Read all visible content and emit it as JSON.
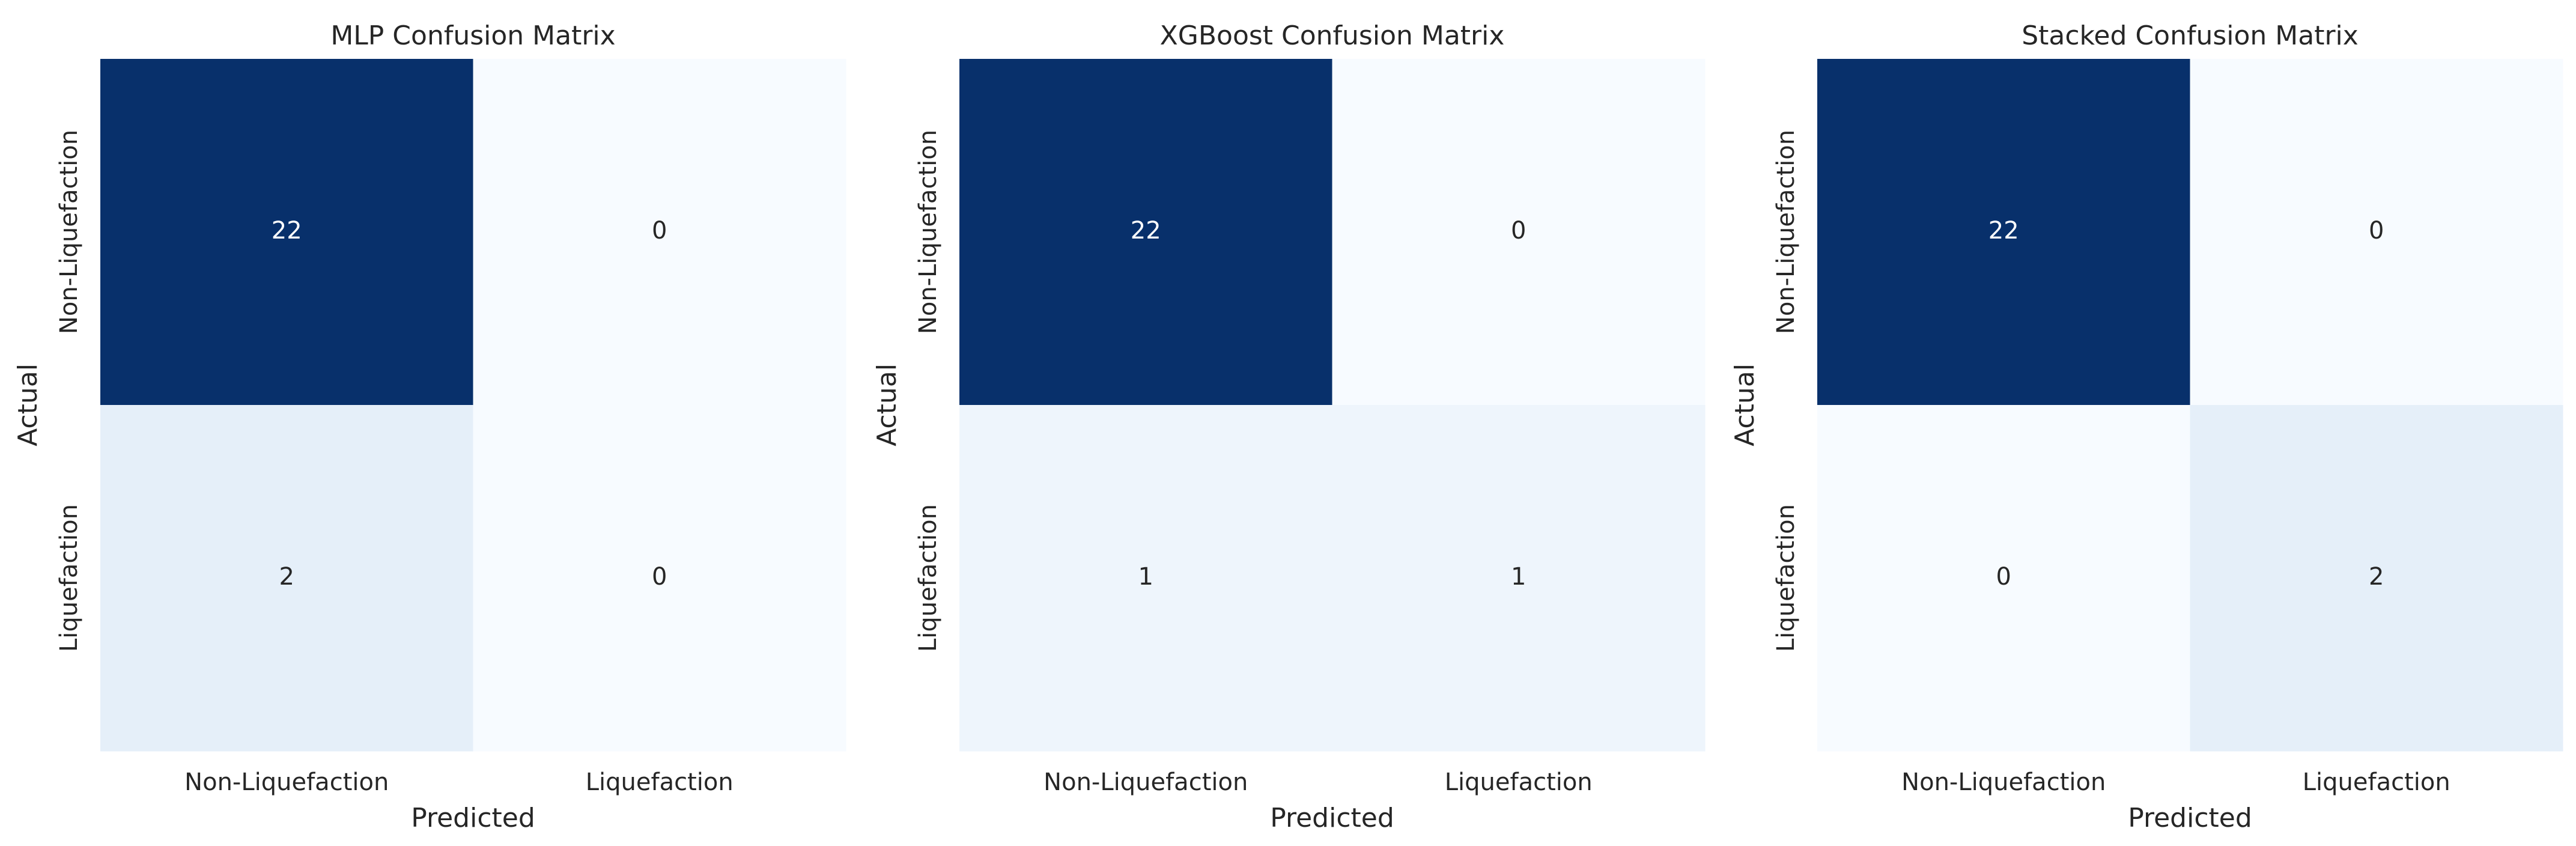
{
  "chart_data": [
    {
      "type": "heatmap",
      "title": "MLP Confusion Matrix",
      "x_label": "Predicted",
      "y_label": "Actual",
      "x_categories": [
        "Non-Liquefaction",
        "Liquefaction"
      ],
      "y_categories": [
        "Non-Liquefaction",
        "Liquefaction"
      ],
      "values": [
        [
          22,
          0
        ],
        [
          2,
          0
        ]
      ],
      "colorscale": [
        "#f7fbff",
        "#deebf7",
        "#c6dbef",
        "#9ecae1",
        "#6baed6",
        "#4292c6",
        "#2171b5",
        "#08519c",
        "#08306b"
      ]
    },
    {
      "type": "heatmap",
      "title": "XGBoost Confusion Matrix",
      "x_label": "Predicted",
      "y_label": "Actual",
      "x_categories": [
        "Non-Liquefaction",
        "Liquefaction"
      ],
      "y_categories": [
        "Non-Liquefaction",
        "Liquefaction"
      ],
      "values": [
        [
          22,
          0
        ],
        [
          1,
          1
        ]
      ],
      "colorscale": [
        "#f7fbff",
        "#deebf7",
        "#c6dbef",
        "#9ecae1",
        "#6baed6",
        "#4292c6",
        "#2171b5",
        "#08519c",
        "#08306b"
      ]
    },
    {
      "type": "heatmap",
      "title": "Stacked Confusion Matrix",
      "x_label": "Predicted",
      "y_label": "Actual",
      "x_categories": [
        "Non-Liquefaction",
        "Liquefaction"
      ],
      "y_categories": [
        "Non-Liquefaction",
        "Liquefaction"
      ],
      "values": [
        [
          22,
          0
        ],
        [
          0,
          2
        ]
      ],
      "colorscale": [
        "#f7fbff",
        "#deebf7",
        "#c6dbef",
        "#9ecae1",
        "#6baed6",
        "#4292c6",
        "#2171b5",
        "#08519c",
        "#08306b"
      ]
    }
  ]
}
